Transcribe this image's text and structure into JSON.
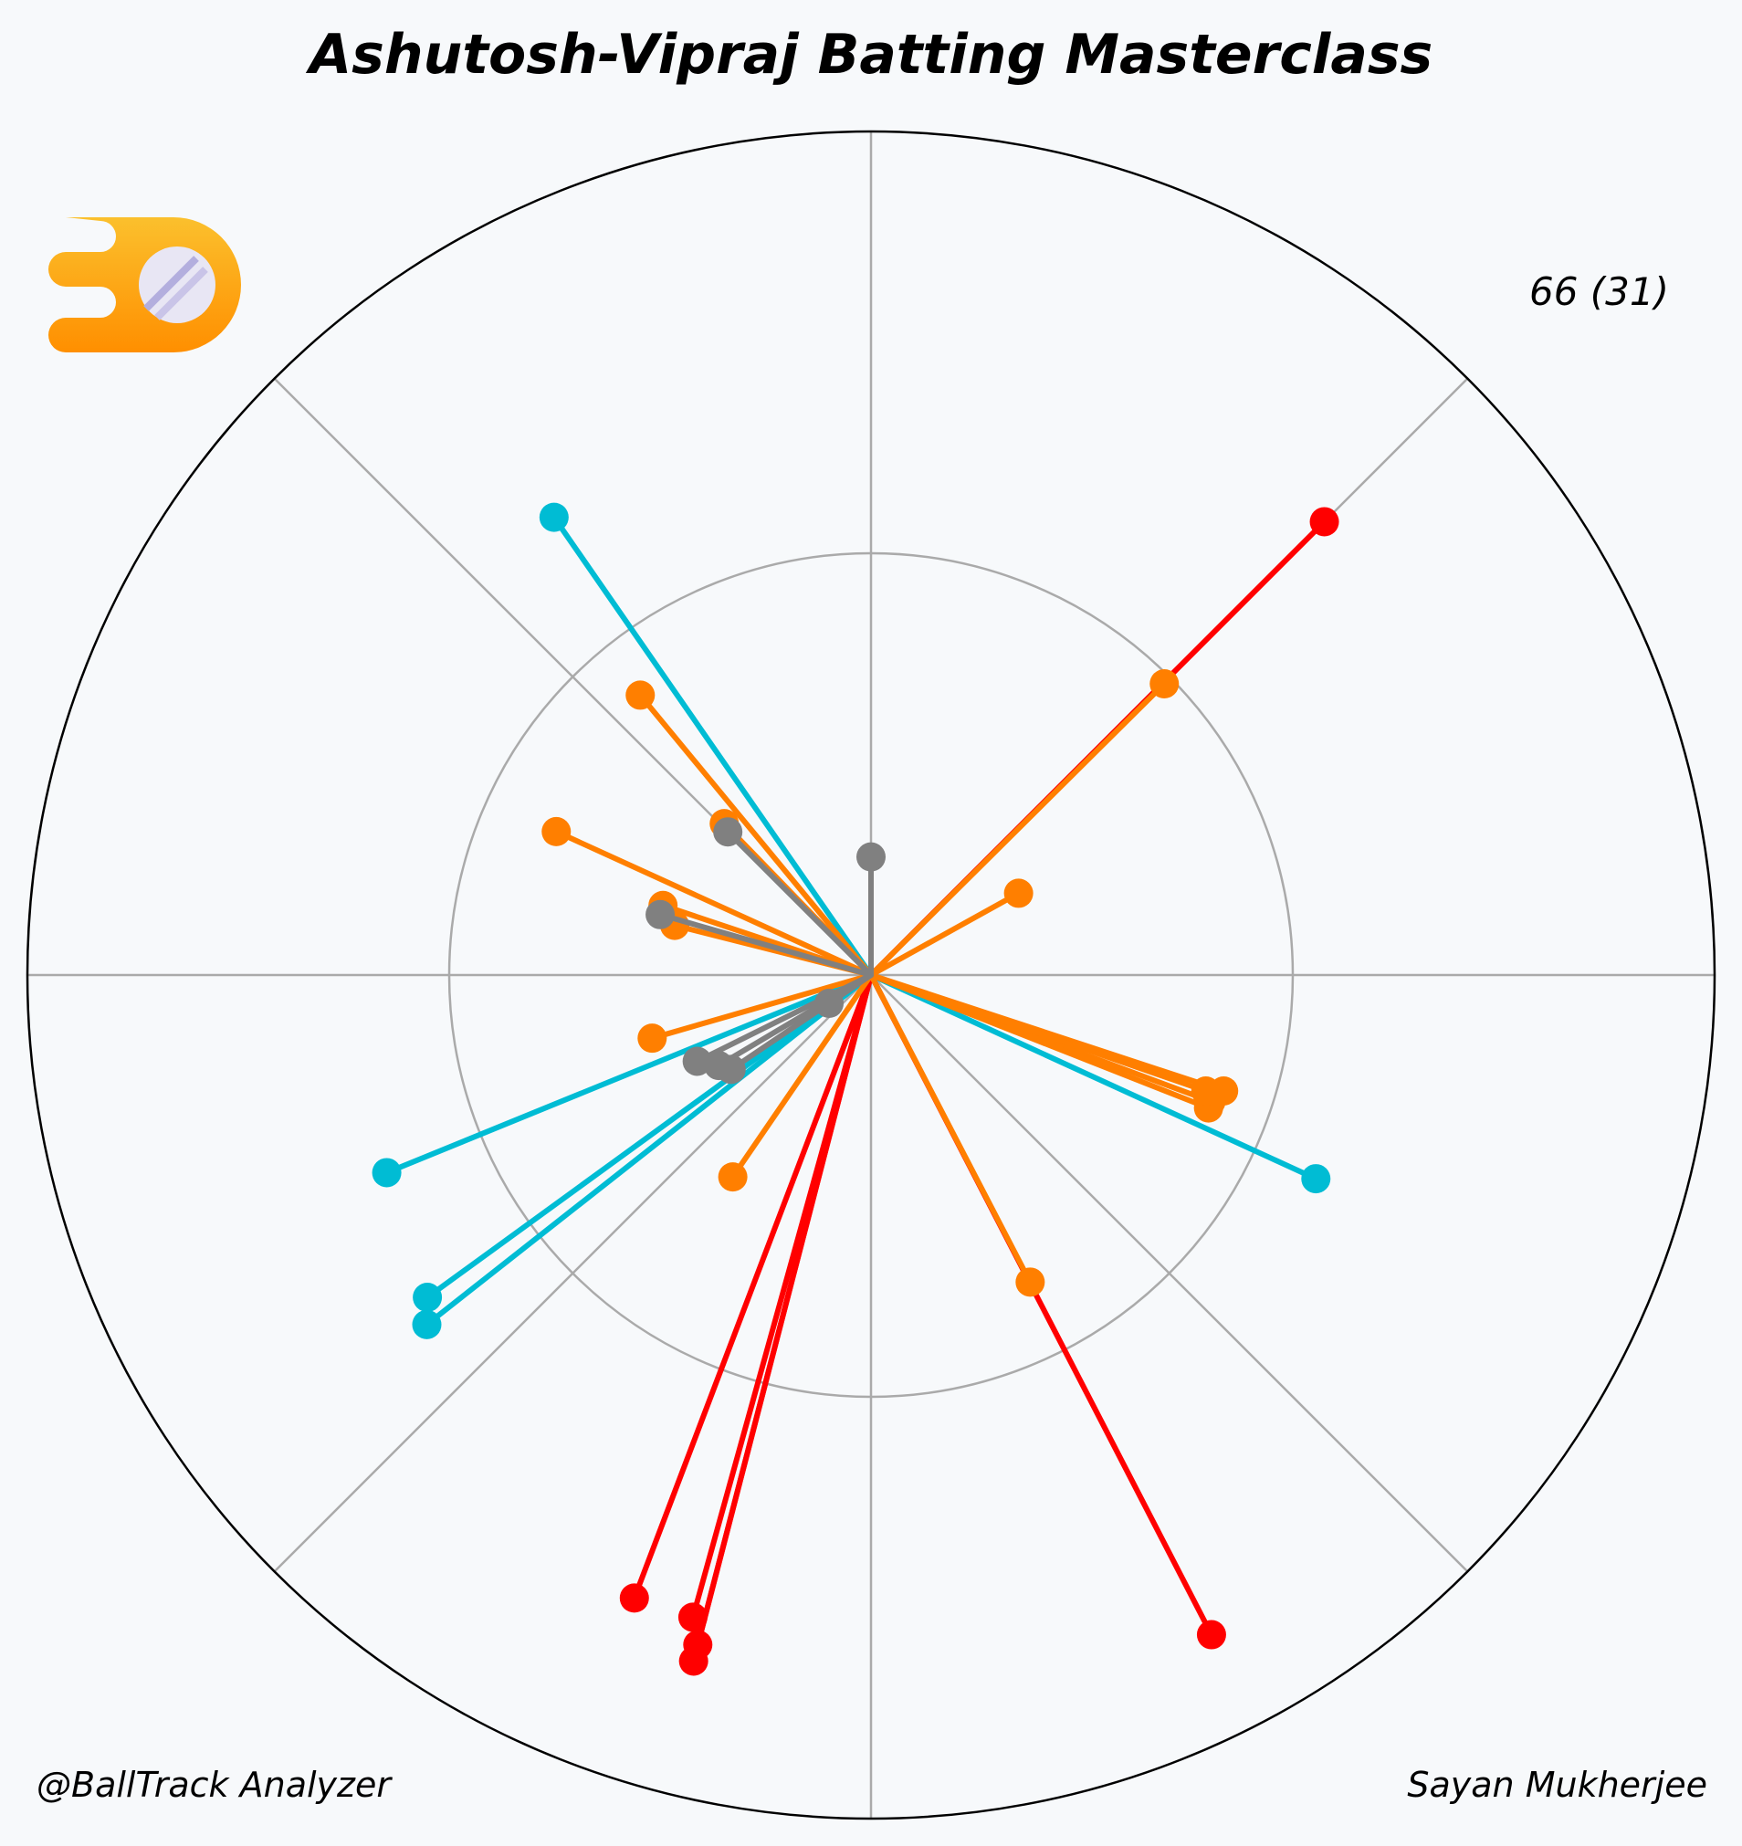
{
  "chart_data": {
    "type": "wagon-wheel",
    "title": "Ashutosh-Vipraj Batting Masterclass",
    "score": "66 (31)",
    "credit_left": "@BallTrack Analyzer",
    "credit_right": "Sayan Mukherjee",
    "rmax": 100,
    "rings": [
      50,
      100
    ],
    "spokes_deg": [
      0,
      45,
      90,
      135,
      180,
      225,
      270,
      315
    ],
    "series": [
      {
        "color": "#ff0000",
        "shots": [
          {
            "angle": 45,
            "r": 76
          },
          {
            "angle": 152.7,
            "r": 88
          },
          {
            "angle": 195.5,
            "r": 79
          },
          {
            "angle": 194.5,
            "r": 82
          },
          {
            "angle": 194.5,
            "r": 84
          },
          {
            "angle": 200.8,
            "r": 79
          }
        ]
      },
      {
        "color": "#00bcd4",
        "shots": [
          {
            "angle": 325.3,
            "r": 66
          },
          {
            "angle": 114.6,
            "r": 58
          },
          {
            "angle": 247.8,
            "r": 62
          },
          {
            "angle": 234.0,
            "r": 65
          },
          {
            "angle": 231.8,
            "r": 67
          }
        ]
      },
      {
        "color": "#ff7f00",
        "shots": [
          {
            "angle": 45.2,
            "r": 49
          },
          {
            "angle": 61.0,
            "r": 20
          },
          {
            "angle": 108.2,
            "r": 44
          },
          {
            "angle": 110.4,
            "r": 43
          },
          {
            "angle": 111.5,
            "r": 43
          },
          {
            "angle": 109.1,
            "r": 42
          },
          {
            "angle": 152.6,
            "r": 41
          },
          {
            "angle": 214.4,
            "r": 29
          },
          {
            "angle": 253.9,
            "r": 27
          },
          {
            "angle": 284.2,
            "r": 24
          },
          {
            "angle": 288.5,
            "r": 26
          },
          {
            "angle": 294.5,
            "r": 41
          },
          {
            "angle": 315.9,
            "r": 25
          },
          {
            "angle": 320.5,
            "r": 43
          }
        ]
      },
      {
        "color": "#808080",
        "shots": [
          {
            "angle": 0,
            "r": 14
          },
          {
            "angle": 315.0,
            "r": 24
          },
          {
            "angle": 286.0,
            "r": 26
          },
          {
            "angle": 236.0,
            "r": 6
          },
          {
            "angle": 243.6,
            "r": 23
          },
          {
            "angle": 239.3,
            "r": 21
          },
          {
            "angle": 236.0,
            "r": 20
          }
        ]
      }
    ]
  }
}
